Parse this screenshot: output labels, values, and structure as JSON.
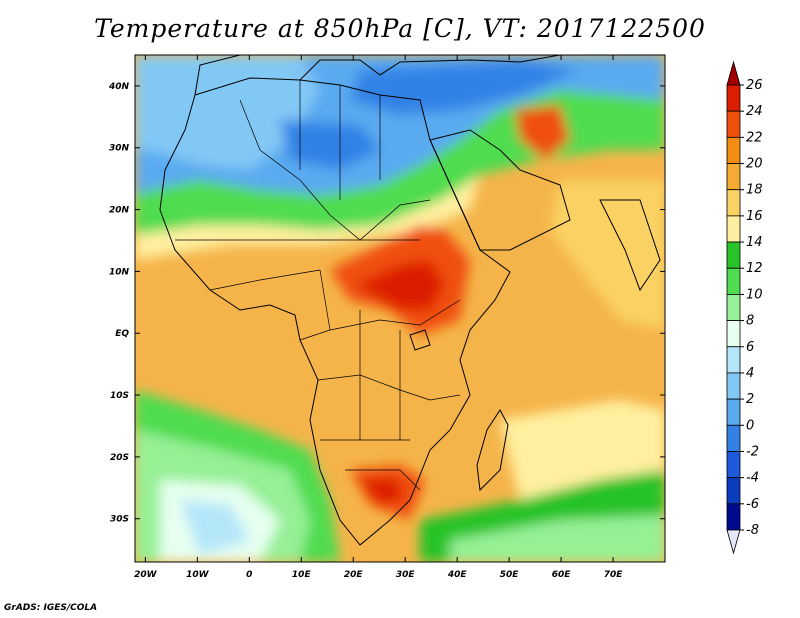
{
  "title": "Temperature at 850hPa [C], VT: 2017122500",
  "footer": "GrADS: IGES/COLA",
  "map": {
    "lon_ticks": [
      "20W",
      "10W",
      "0",
      "10E",
      "20E",
      "30E",
      "40E",
      "50E",
      "60E",
      "70E"
    ],
    "lat_ticks": [
      "40N",
      "30N",
      "20N",
      "10N",
      "EQ",
      "10S",
      "20S",
      "30S"
    ],
    "lon_range": [
      -22,
      80
    ],
    "lat_range": [
      -37,
      45
    ]
  },
  "colorbar": {
    "labels": [
      "26",
      "24",
      "22",
      "20",
      "18",
      "16",
      "14",
      "12",
      "10",
      "8",
      "6",
      "4",
      "2",
      "0",
      "-2",
      "-4",
      "-6",
      "-8"
    ],
    "colors": [
      "#a50000",
      "#dc1e00",
      "#f0500a",
      "#f58c14",
      "#f5aa32",
      "#fad264",
      "#fff0a0",
      "#28c328",
      "#50dc50",
      "#96f096",
      "#e6fff0",
      "#b4e6fa",
      "#82c8f5",
      "#5aaaf0",
      "#3282e6",
      "#1e5adc",
      "#0a3cbe",
      "#000a8c",
      "#e6e6fa"
    ]
  }
}
